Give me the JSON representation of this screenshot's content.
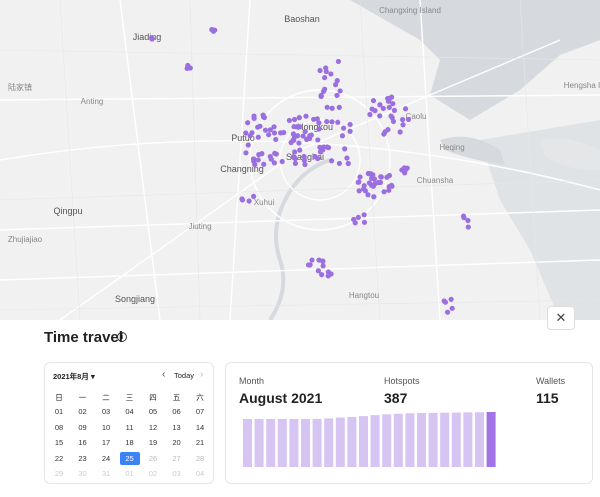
{
  "map": {
    "labels": [
      "Baoshan",
      "Changxing Island",
      "Jiading",
      "Hengsha I",
      "陆家镇",
      "Anting",
      "Putuo",
      "Hongkou",
      "Caolu",
      "Changning",
      "Shanghai",
      "Heqing",
      "Chuansha",
      "Xuhui",
      "Qingpu",
      "Jiuting",
      "Songjiang",
      "Hangtou",
      "Zhujiajiao"
    ]
  },
  "panel": {
    "title": "Time travel"
  },
  "calendar": {
    "month_label": "2021年8月 ▾",
    "today": "Today",
    "weekdays": [
      "日",
      "一",
      "二",
      "三",
      "四",
      "五",
      "六"
    ],
    "weeks": [
      [
        "01",
        "02",
        "03",
        "04",
        "05",
        "06",
        "07"
      ],
      [
        "08",
        "09",
        "10",
        "11",
        "12",
        "13",
        "14"
      ],
      [
        "15",
        "16",
        "17",
        "18",
        "19",
        "20",
        "21"
      ],
      [
        "22",
        "23",
        "24",
        "25",
        "26",
        "27",
        "28"
      ],
      [
        "29",
        "30",
        "31",
        "01",
        "02",
        "03",
        "04"
      ]
    ]
  },
  "stats": {
    "month_label": "Month",
    "month": "August 2021",
    "hotspots_label": "Hotspots",
    "hotspots": 387,
    "wallets_label": "Wallets",
    "wallets": 115
  },
  "daily_hotspots": {
    "values": [
      338,
      338,
      338,
      338,
      338,
      338,
      338,
      342,
      348,
      352,
      358,
      365,
      370,
      375,
      378,
      380,
      381,
      382,
      383,
      384,
      385,
      387
    ]
  }
}
